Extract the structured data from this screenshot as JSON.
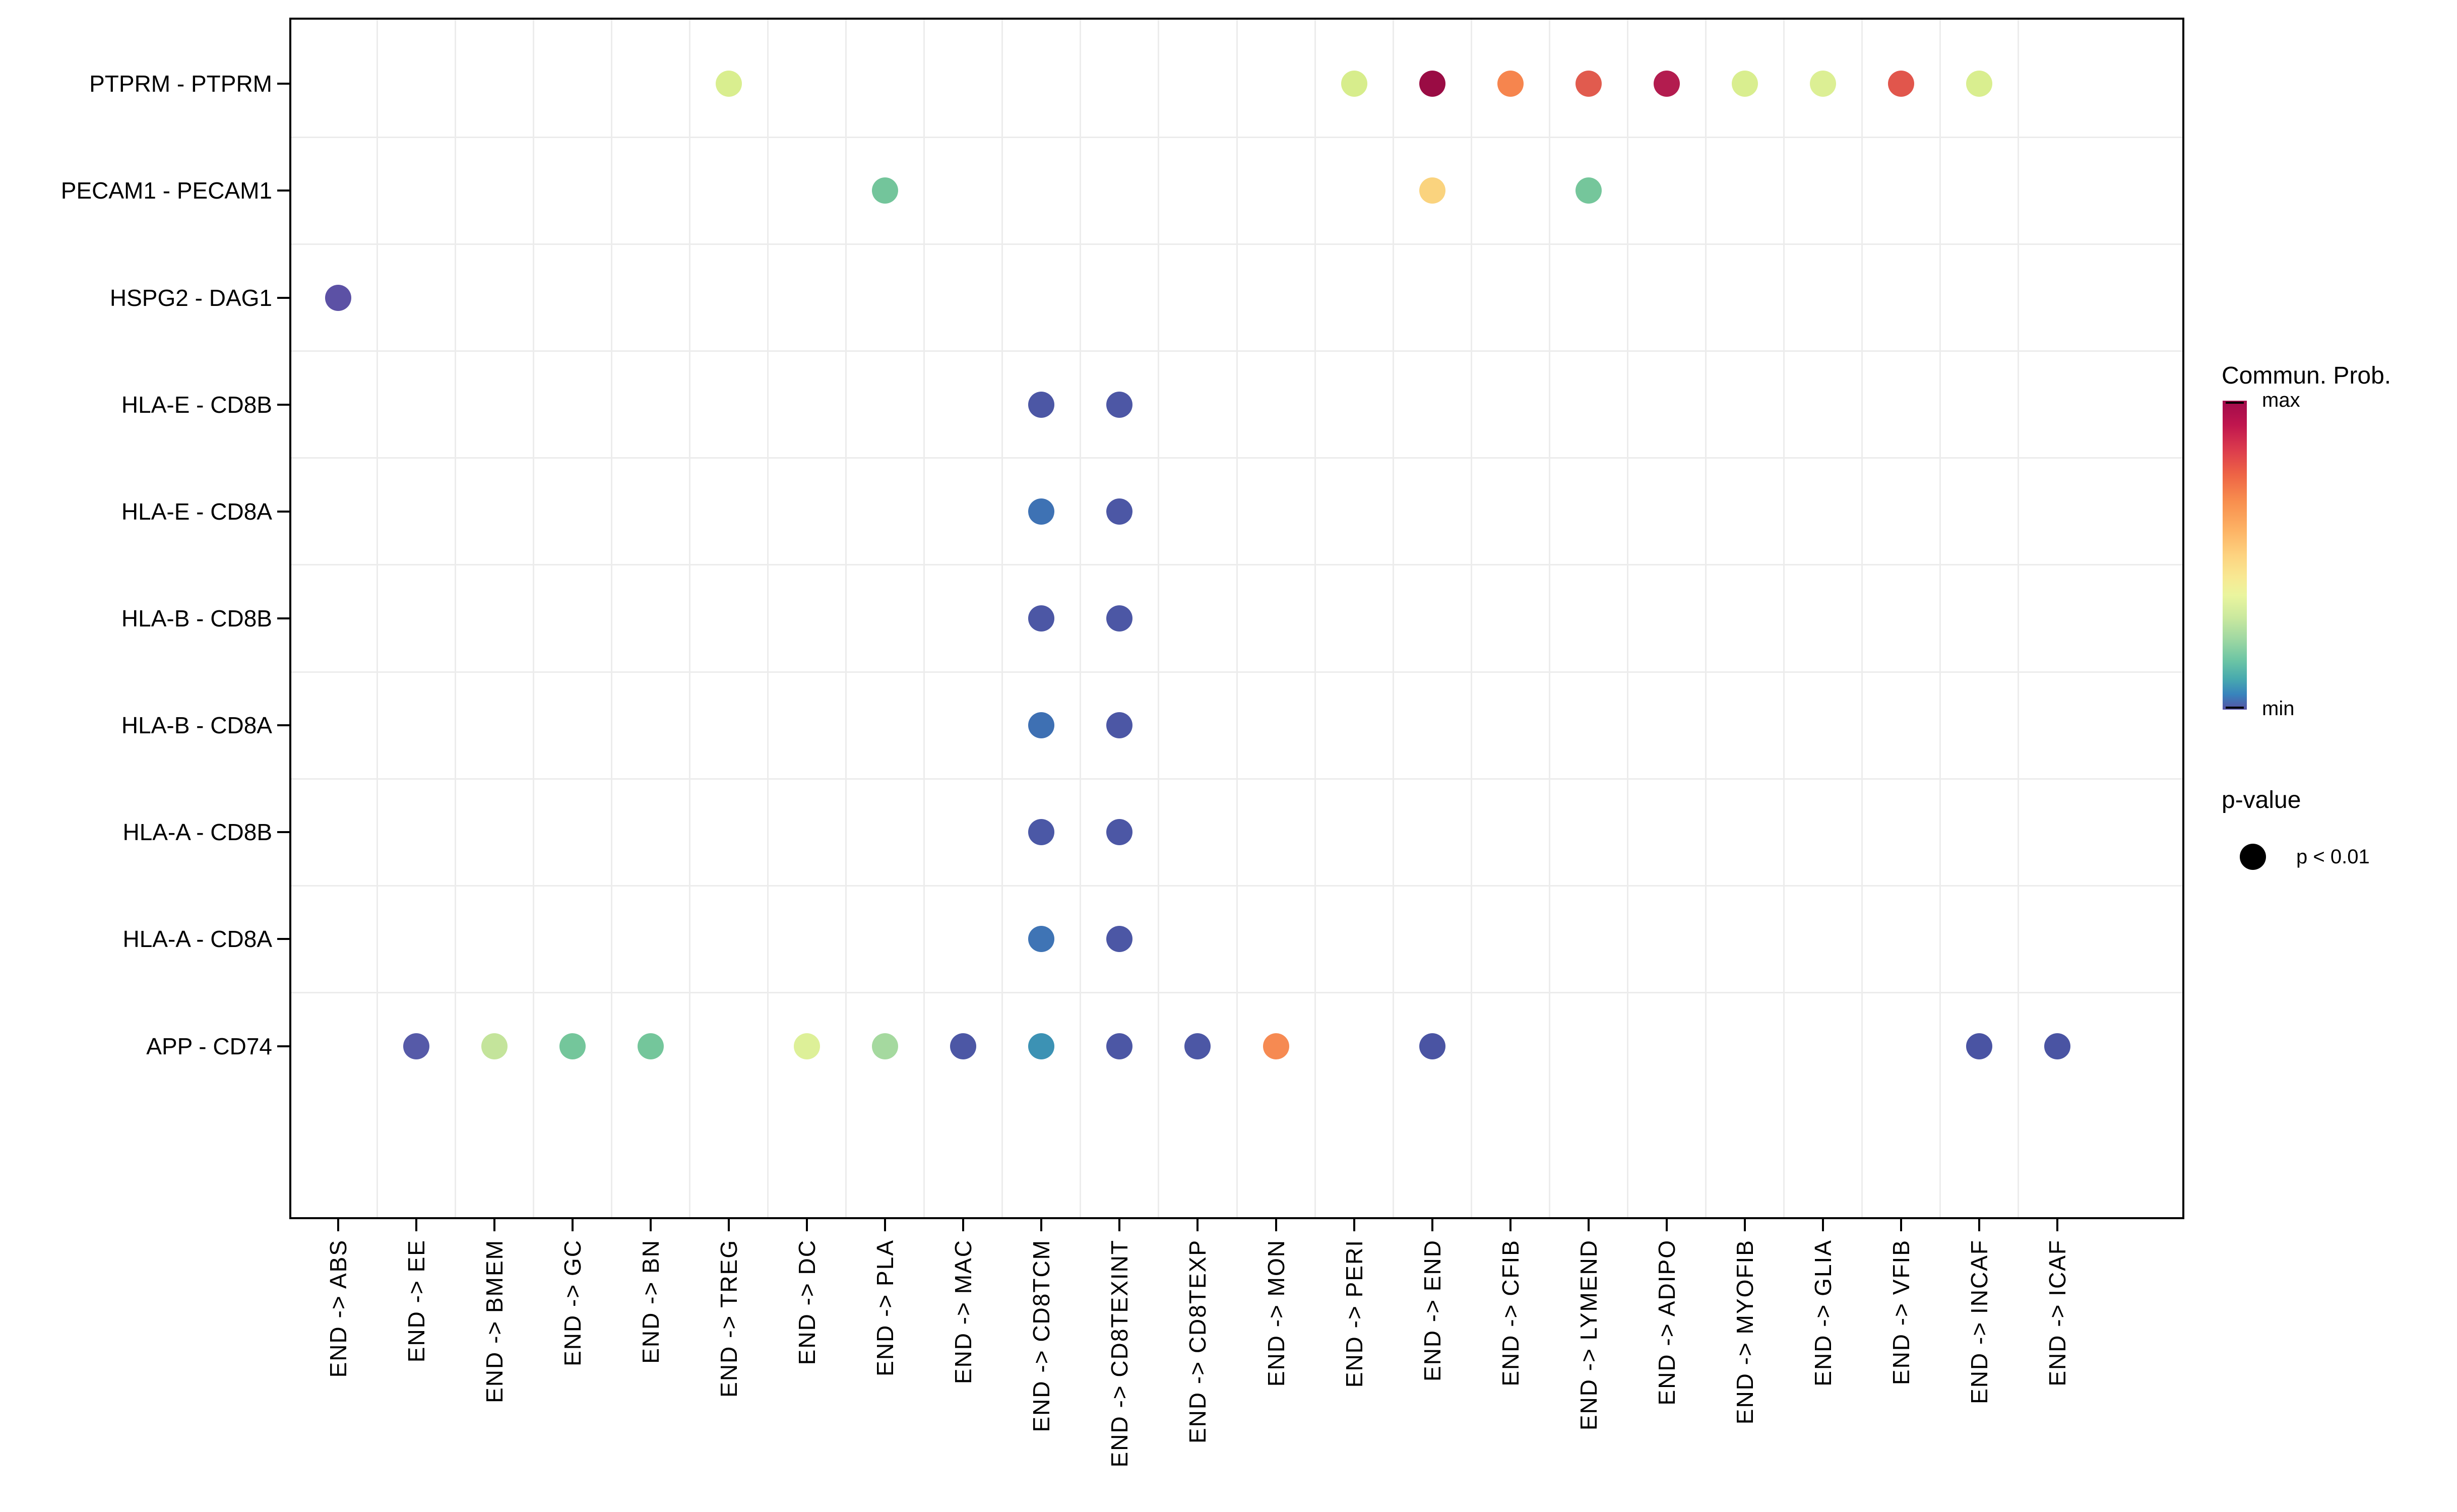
{
  "figure": {
    "background_color": "#FFFFFF",
    "panel_border_color": "#000000",
    "gridline_color": "#ECECEC",
    "axis_text_color": "#000000"
  },
  "chart_data": {
    "type": "scatter",
    "subtype": "bubble-dotplot (cell-cell communication)",
    "title": "",
    "xlabel": "",
    "ylabel": "",
    "grid": "light category-boundary gridlines on white panel",
    "x_categories": [
      "END -> ABS",
      "END -> EE",
      "END -> BMEM",
      "END -> GC",
      "END -> BN",
      "END -> TREG",
      "END -> DC",
      "END -> PLA",
      "END -> MAC",
      "END -> CD8TCM",
      "END -> CD8TEXINT",
      "END -> CD8TEXP",
      "END -> MON",
      "END -> PERI",
      "END -> END",
      "END -> CFIB",
      "END -> LYMEND",
      "END -> ADIPO",
      "END -> MYOFIB",
      "END -> GLIA",
      "END -> VFIB",
      "END -> INCAF",
      "END -> ICAF"
    ],
    "y_categories": [
      "PTPRM - PTPRM",
      "PECAM1 - PECAM1",
      "HSPG2 - DAG1",
      "HLA-E - CD8B",
      "HLA-E - CD8A",
      "HLA-B - CD8B",
      "HLA-B - CD8A",
      "HLA-A - CD8B",
      "HLA-A - CD8A",
      "APP - CD74"
    ],
    "color_encoding": "communication probability, Spectral colormap, min (blue-purple) to max (dark crimson)",
    "size_encoding": "all dots same size = p-value < 0.01",
    "points": [
      {
        "y": "PTPRM - PTPRM",
        "x": "END -> TREG",
        "color": "#D9EE8F"
      },
      {
        "y": "PTPRM - PTPRM",
        "x": "END -> PERI",
        "color": "#D7ED8C"
      },
      {
        "y": "PTPRM - PTPRM",
        "x": "END -> END",
        "color": "#9A0C44"
      },
      {
        "y": "PTPRM - PTPRM",
        "x": "END -> CFIB",
        "color": "#F6854E"
      },
      {
        "y": "PTPRM - PTPRM",
        "x": "END -> LYMEND",
        "color": "#E15B4E"
      },
      {
        "y": "PTPRM - PTPRM",
        "x": "END -> ADIPO",
        "color": "#B31C4F"
      },
      {
        "y": "PTPRM - PTPRM",
        "x": "END -> MYOFIB",
        "color": "#D9EE8F"
      },
      {
        "y": "PTPRM - PTPRM",
        "x": "END -> GLIA",
        "color": "#DCEF94"
      },
      {
        "y": "PTPRM - PTPRM",
        "x": "END -> VFIB",
        "color": "#E1564C"
      },
      {
        "y": "PTPRM - PTPRM",
        "x": "END -> INCAF",
        "color": "#D9EE8F"
      },
      {
        "y": "PECAM1 - PECAM1",
        "x": "END -> PLA",
        "color": "#73C59B"
      },
      {
        "y": "PECAM1 - PECAM1",
        "x": "END -> END",
        "color": "#FAD37E"
      },
      {
        "y": "PECAM1 - PECAM1",
        "x": "END -> LYMEND",
        "color": "#75C69B"
      },
      {
        "y": "HSPG2 - DAG1",
        "x": "END -> ABS",
        "color": "#5C51A5"
      },
      {
        "y": "HLA-E - CD8B",
        "x": "END -> CD8TCM",
        "color": "#4C57A5"
      },
      {
        "y": "HLA-E - CD8B",
        "x": "END -> CD8TEXINT",
        "color": "#4D57A5"
      },
      {
        "y": "HLA-E - CD8A",
        "x": "END -> CD8TCM",
        "color": "#3E72B4"
      },
      {
        "y": "HLA-E - CD8A",
        "x": "END -> CD8TEXINT",
        "color": "#4C57A5"
      },
      {
        "y": "HLA-B - CD8B",
        "x": "END -> CD8TCM",
        "color": "#4C57A5"
      },
      {
        "y": "HLA-B - CD8B",
        "x": "END -> CD8TEXINT",
        "color": "#4C57A5"
      },
      {
        "y": "HLA-B - CD8A",
        "x": "END -> CD8TCM",
        "color": "#3E70B3"
      },
      {
        "y": "HLA-B - CD8A",
        "x": "END -> CD8TEXINT",
        "color": "#4C57A5"
      },
      {
        "y": "HLA-A - CD8B",
        "x": "END -> CD8TCM",
        "color": "#4B58A6"
      },
      {
        "y": "HLA-A - CD8B",
        "x": "END -> CD8TEXINT",
        "color": "#4C57A5"
      },
      {
        "y": "HLA-A - CD8A",
        "x": "END -> CD8TCM",
        "color": "#3F74B5"
      },
      {
        "y": "HLA-A - CD8A",
        "x": "END -> CD8TEXINT",
        "color": "#4C57A5"
      },
      {
        "y": "APP - CD74",
        "x": "END -> EE",
        "color": "#565AA8"
      },
      {
        "y": "APP - CD74",
        "x": "END -> BMEM",
        "color": "#C4E49B"
      },
      {
        "y": "APP - CD74",
        "x": "END -> GC",
        "color": "#74C69B"
      },
      {
        "y": "APP - CD74",
        "x": "END -> BN",
        "color": "#74C69B"
      },
      {
        "y": "APP - CD74",
        "x": "END -> DC",
        "color": "#DDF098"
      },
      {
        "y": "APP - CD74",
        "x": "END -> PLA",
        "color": "#A5D99F"
      },
      {
        "y": "APP - CD74",
        "x": "END -> MAC",
        "color": "#4C57A5"
      },
      {
        "y": "APP - CD74",
        "x": "END -> CD8TCM",
        "color": "#3C92B4"
      },
      {
        "y": "APP - CD74",
        "x": "END -> CD8TEXINT",
        "color": "#4C57A5"
      },
      {
        "y": "APP - CD74",
        "x": "END -> CD8TEXP",
        "color": "#4C57A5"
      },
      {
        "y": "APP - CD74",
        "x": "END -> MON",
        "color": "#F68A52"
      },
      {
        "y": "APP - CD74",
        "x": "END -> END",
        "color": "#4A54A3"
      },
      {
        "y": "APP - CD74",
        "x": "END -> INCAF",
        "color": "#4A54A3"
      },
      {
        "y": "APP - CD74",
        "x": "END -> ICAF",
        "color": "#4A54A3"
      }
    ],
    "legend": {
      "commun_prob": {
        "title": "Commun. Prob.",
        "max_label": "max",
        "min_label": "min",
        "gradient_stops": [
          {
            "pos": 0,
            "color": "#A10B4B"
          },
          {
            "pos": 8,
            "color": "#C0164E"
          },
          {
            "pos": 16,
            "color": "#DC3C4D"
          },
          {
            "pos": 24,
            "color": "#EE6445"
          },
          {
            "pos": 33,
            "color": "#F8904F"
          },
          {
            "pos": 42,
            "color": "#FDB365"
          },
          {
            "pos": 50,
            "color": "#FDD27F"
          },
          {
            "pos": 57,
            "color": "#F8E892"
          },
          {
            "pos": 63,
            "color": "#EAF59E"
          },
          {
            "pos": 70,
            "color": "#CBE99E"
          },
          {
            "pos": 77,
            "color": "#A0D8A2"
          },
          {
            "pos": 84,
            "color": "#6DC5A4"
          },
          {
            "pos": 90,
            "color": "#48AAAE"
          },
          {
            "pos": 95,
            "color": "#3884BC"
          },
          {
            "pos": 100,
            "color": "#5652A4"
          }
        ]
      },
      "p_value": {
        "title": "p-value",
        "entry_label": "p < 0.01",
        "dot_color": "#000000"
      }
    },
    "layout_hints": {
      "legend_position": "right",
      "x_tick_rotation": "90deg (reads bottom-to-top)",
      "all_dots_equal_size": true
    }
  }
}
